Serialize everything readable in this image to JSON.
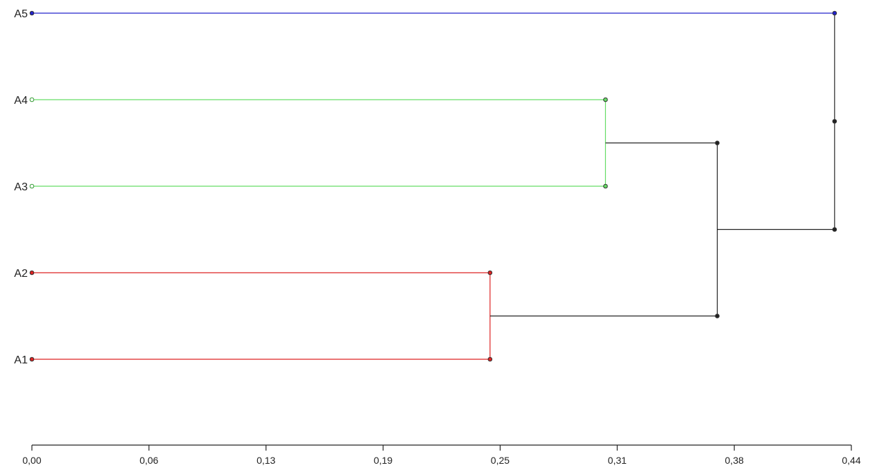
{
  "chart_data": {
    "type": "dendrogram",
    "orientation": "horizontal",
    "leaves": [
      {
        "label": "A5",
        "color": "#2222cc"
      },
      {
        "label": "A4",
        "color": "#66dd66"
      },
      {
        "label": "A3",
        "color": "#66dd66"
      },
      {
        "label": "A2",
        "color": "#dd2222"
      },
      {
        "label": "A1",
        "color": "#dd2222"
      }
    ],
    "merges": [
      {
        "children": [
          "A2",
          "A1"
        ],
        "height": 0.246,
        "color": "#dd2222"
      },
      {
        "children": [
          "A4",
          "A3"
        ],
        "height": 0.308,
        "color": "#66dd66"
      },
      {
        "children": [
          "A4+A3",
          "A2+A1"
        ],
        "height": 0.368,
        "color": "#222222"
      },
      {
        "children": [
          "A5",
          "A4+A3+A2+A1"
        ],
        "height": 0.431,
        "color": "#222222"
      }
    ],
    "x_ticks": [
      "0,00",
      "0,06",
      "0,13",
      "0,19",
      "0,25",
      "0,31",
      "0,38",
      "0,44"
    ],
    "x_tick_values": [
      0.0,
      0.0625,
      0.125,
      0.1875,
      0.25,
      0.3125,
      0.375,
      0.4375
    ],
    "xlim": [
      0,
      0.44
    ]
  }
}
